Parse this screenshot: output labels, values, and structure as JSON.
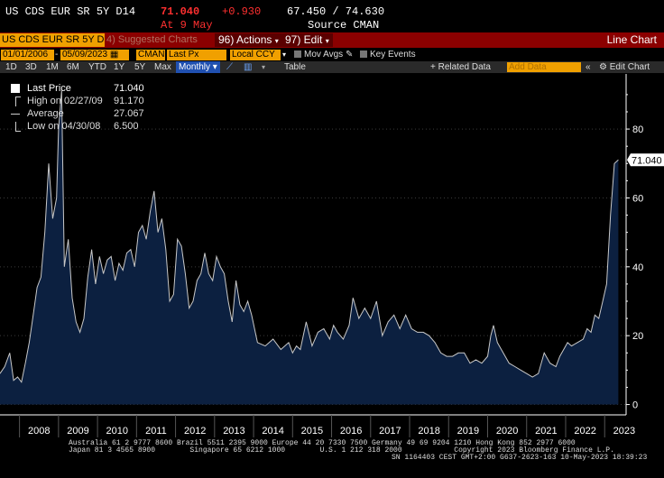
{
  "header": {
    "security": "US CDS EUR SR 5Y D14",
    "last": "71.040",
    "change": "+0.930",
    "range": "67.450 / 74.630",
    "time": "At 9 May",
    "source": "Source CMAN"
  },
  "command_bar": {
    "ticker": "US CDS EUR SR 5Y D1",
    "suggested": "4) Suggested Charts",
    "actions": "96) Actions",
    "edit": "97) Edit",
    "title": "Line Chart"
  },
  "controls": {
    "start_date": "01/01/2006",
    "end_date": "05/09/2023",
    "source": "CMAN",
    "field": "Last Px",
    "currency": "Local CCY",
    "mov_avgs": "Mov Avgs",
    "key_events": "Key Events"
  },
  "periods": {
    "items": [
      "1D",
      "3D",
      "1M",
      "6M",
      "YTD",
      "1Y",
      "5Y",
      "Max"
    ],
    "selected": "Monthly",
    "table": "Table",
    "related_data": "+ Related Data",
    "add_data": "Add Data",
    "edit_chart": "Edit Chart"
  },
  "legend": {
    "last_price": {
      "label": "Last Price",
      "value": "71.040"
    },
    "high": {
      "label": "High on 02/27/09",
      "value": "91.170"
    },
    "average": {
      "label": "Average",
      "value": "27.067"
    },
    "low": {
      "label": "Low on 04/30/08",
      "value": "6.500"
    }
  },
  "chart_data": {
    "type": "area",
    "ylim": [
      -3,
      96
    ],
    "yticks": [
      0,
      20,
      40,
      60,
      80
    ],
    "last_label": "71.040",
    "xlim": [
      2007.5,
      2023.55
    ],
    "xtick_labels": [
      "2008",
      "2009",
      "2010",
      "2011",
      "2012",
      "2013",
      "2014",
      "2015",
      "2016",
      "2017",
      "2018",
      "2019",
      "2020",
      "2021",
      "2022",
      "2023"
    ],
    "colors": {
      "fill": "#0c2040",
      "line": "#c8c8c8",
      "axis": "#ffffff"
    },
    "x": [
      2007.5,
      2007.62,
      2007.75,
      2007.85,
      2007.95,
      2008.05,
      2008.15,
      2008.25,
      2008.35,
      2008.45,
      2008.55,
      2008.65,
      2008.75,
      2008.85,
      2008.95,
      2009.0,
      2009.08,
      2009.15,
      2009.25,
      2009.35,
      2009.45,
      2009.55,
      2009.65,
      2009.75,
      2009.85,
      2009.95,
      2010.05,
      2010.15,
      2010.25,
      2010.35,
      2010.45,
      2010.55,
      2010.65,
      2010.75,
      2010.85,
      2010.95,
      2011.05,
      2011.15,
      2011.25,
      2011.35,
      2011.45,
      2011.55,
      2011.65,
      2011.75,
      2011.85,
      2011.95,
      2012.05,
      2012.15,
      2012.25,
      2012.35,
      2012.45,
      2012.55,
      2012.65,
      2012.75,
      2012.85,
      2012.95,
      2013.05,
      2013.15,
      2013.25,
      2013.35,
      2013.45,
      2013.55,
      2013.65,
      2013.75,
      2013.85,
      2013.95,
      2014.1,
      2014.3,
      2014.5,
      2014.7,
      2014.9,
      2015.0,
      2015.1,
      2015.2,
      2015.35,
      2015.5,
      2015.65,
      2015.8,
      2015.95,
      2016.05,
      2016.15,
      2016.3,
      2016.45,
      2016.55,
      2016.7,
      2016.85,
      2017.0,
      2017.15,
      2017.3,
      2017.45,
      2017.6,
      2017.75,
      2017.9,
      2018.05,
      2018.2,
      2018.35,
      2018.5,
      2018.65,
      2018.8,
      2018.95,
      2019.1,
      2019.25,
      2019.4,
      2019.55,
      2019.7,
      2019.85,
      2020.0,
      2020.08,
      2020.15,
      2020.25,
      2020.4,
      2020.55,
      2020.7,
      2020.85,
      2021.0,
      2021.15,
      2021.3,
      2021.45,
      2021.6,
      2021.75,
      2021.85,
      2021.95,
      2022.05,
      2022.15,
      2022.3,
      2022.45,
      2022.55,
      2022.65,
      2022.75,
      2022.85,
      2022.95,
      2023.05,
      2023.15,
      2023.25,
      2023.35
    ],
    "y": [
      9,
      11,
      15,
      7,
      8,
      6.5,
      12,
      18,
      26,
      34,
      37,
      50,
      70,
      54,
      60,
      80,
      91.17,
      40,
      48,
      31,
      24,
      21,
      25,
      37,
      45,
      35,
      43,
      38,
      42,
      43,
      36,
      41,
      39,
      44,
      45,
      40,
      50,
      52,
      48,
      56,
      62,
      50,
      54,
      45,
      30,
      32,
      48,
      46,
      38,
      28,
      30,
      36,
      38,
      44,
      38,
      36,
      43,
      40,
      38,
      30,
      24,
      36,
      29,
      27,
      30,
      26,
      18,
      17,
      19,
      16,
      18,
      15,
      17,
      16,
      24,
      17,
      21,
      22,
      19,
      23,
      21,
      19,
      23,
      31,
      25,
      28,
      25,
      30,
      20,
      24,
      26,
      22,
      26,
      22,
      21,
      21,
      20,
      18,
      15,
      14,
      14,
      15,
      15,
      12,
      13,
      12,
      14,
      20,
      23,
      18,
      15,
      12,
      11,
      10,
      9,
      8,
      9,
      15,
      12,
      11,
      14,
      16,
      18,
      17,
      18,
      19,
      22,
      21,
      26,
      25,
      30,
      35,
      55,
      70,
      71.04
    ]
  },
  "footer": {
    "line1": "Australia 61 2 9777 8600 Brazil 5511 2395 9000 Europe 44 20 7330 7500 Germany 49 69 9204 1210 Hong Kong 852 2977 6000",
    "line2": "Japan 81 3 4565 8900        Singapore 65 6212 1000        U.S. 1 212 318 2000            Copyright 2023 Bloomberg Finance L.P.",
    "line3": "SN 1164403 CEST GMT+2:00 G637-2623-163 10-May-2023 18:39:23"
  }
}
